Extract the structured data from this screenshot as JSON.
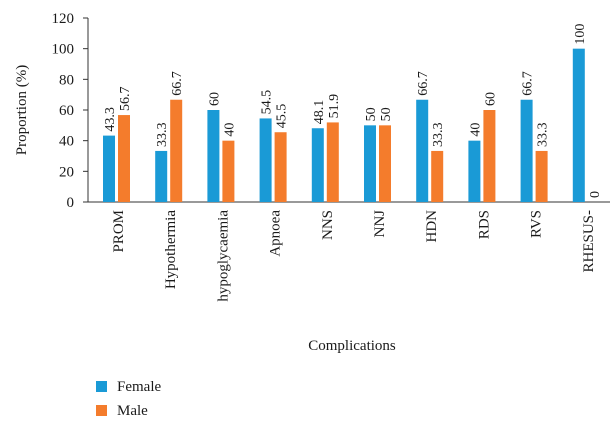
{
  "chart_data": {
    "type": "bar",
    "categories": [
      "PROM",
      "Hypothermia",
      "hypoglycaemia",
      "Apnoea",
      "NNS",
      "NNJ",
      "HDN",
      "RDS",
      "RVS",
      "RHESUS-"
    ],
    "series": [
      {
        "name": "Female",
        "values": [
          43.3,
          33.3,
          60,
          54.5,
          48.1,
          50,
          66.7,
          40,
          66.7,
          100
        ],
        "labels": [
          "43.3",
          "33.3",
          "60",
          "54.5",
          "48.1",
          "50",
          "66.7",
          "40",
          "66.7",
          "100"
        ],
        "color": "#1a9ad6"
      },
      {
        "name": "Male",
        "values": [
          56.7,
          66.7,
          40,
          45.5,
          51.9,
          50,
          33.3,
          60,
          33.3,
          0
        ],
        "labels": [
          "56.7",
          "66.7",
          "40",
          "45.5",
          "51.9",
          "50",
          "33.3",
          "60",
          "33.3",
          "0"
        ],
        "color": "#f47c2c"
      }
    ],
    "xlabel": "Complications",
    "ylabel": "Proportion (%)",
    "ylim": [
      0,
      120
    ],
    "yticks": [
      "0",
      "20",
      "40",
      "60",
      "80",
      "100",
      "120"
    ],
    "grid": false,
    "legend": "bottom-left"
  }
}
